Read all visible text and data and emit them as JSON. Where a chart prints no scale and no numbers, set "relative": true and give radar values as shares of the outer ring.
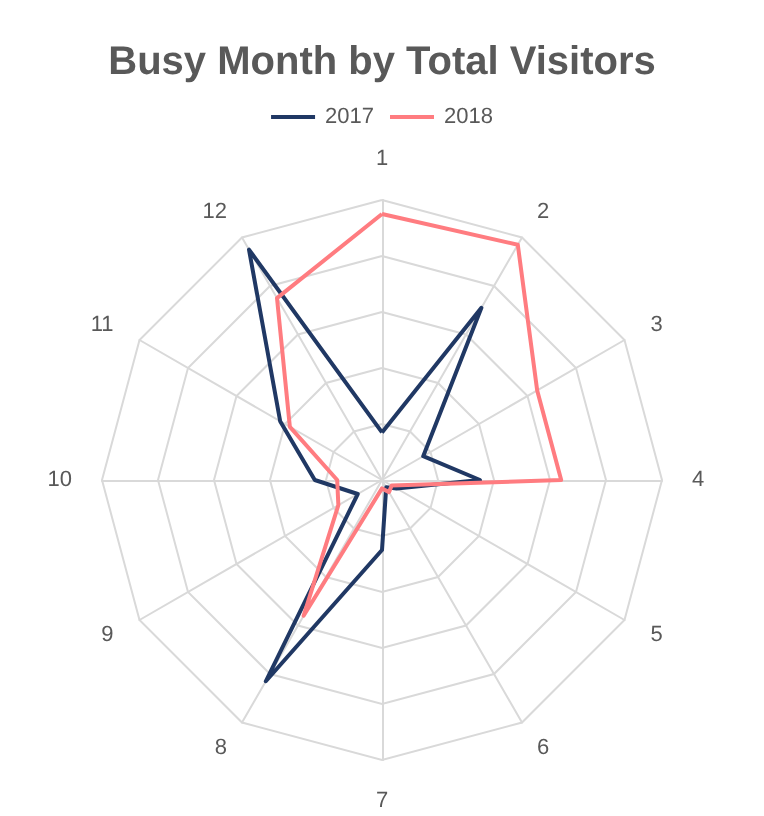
{
  "chart_data": {
    "type": "radar",
    "title": "Busy Month by Total Visitors",
    "relative": true,
    "legend": "top",
    "grid": true,
    "marker": "none",
    "categories": [
      "1",
      "2",
      "3",
      "4",
      "5",
      "6",
      "7",
      "8",
      "9",
      "10",
      "11",
      "12"
    ],
    "series": [
      {
        "name": "2017",
        "color": "#203864",
        "values": [
          0.17,
          0.71,
          0.17,
          0.35,
          0.06,
          0.03,
          0.25,
          0.83,
          0.1,
          0.24,
          0.42,
          0.95
        ]
      },
      {
        "name": "2018",
        "color": "#ff7c80",
        "values": [
          0.95,
          0.97,
          0.64,
          0.64,
          0.04,
          0.05,
          0.03,
          0.56,
          0.18,
          0.16,
          0.38,
          0.75
        ]
      }
    ]
  }
}
